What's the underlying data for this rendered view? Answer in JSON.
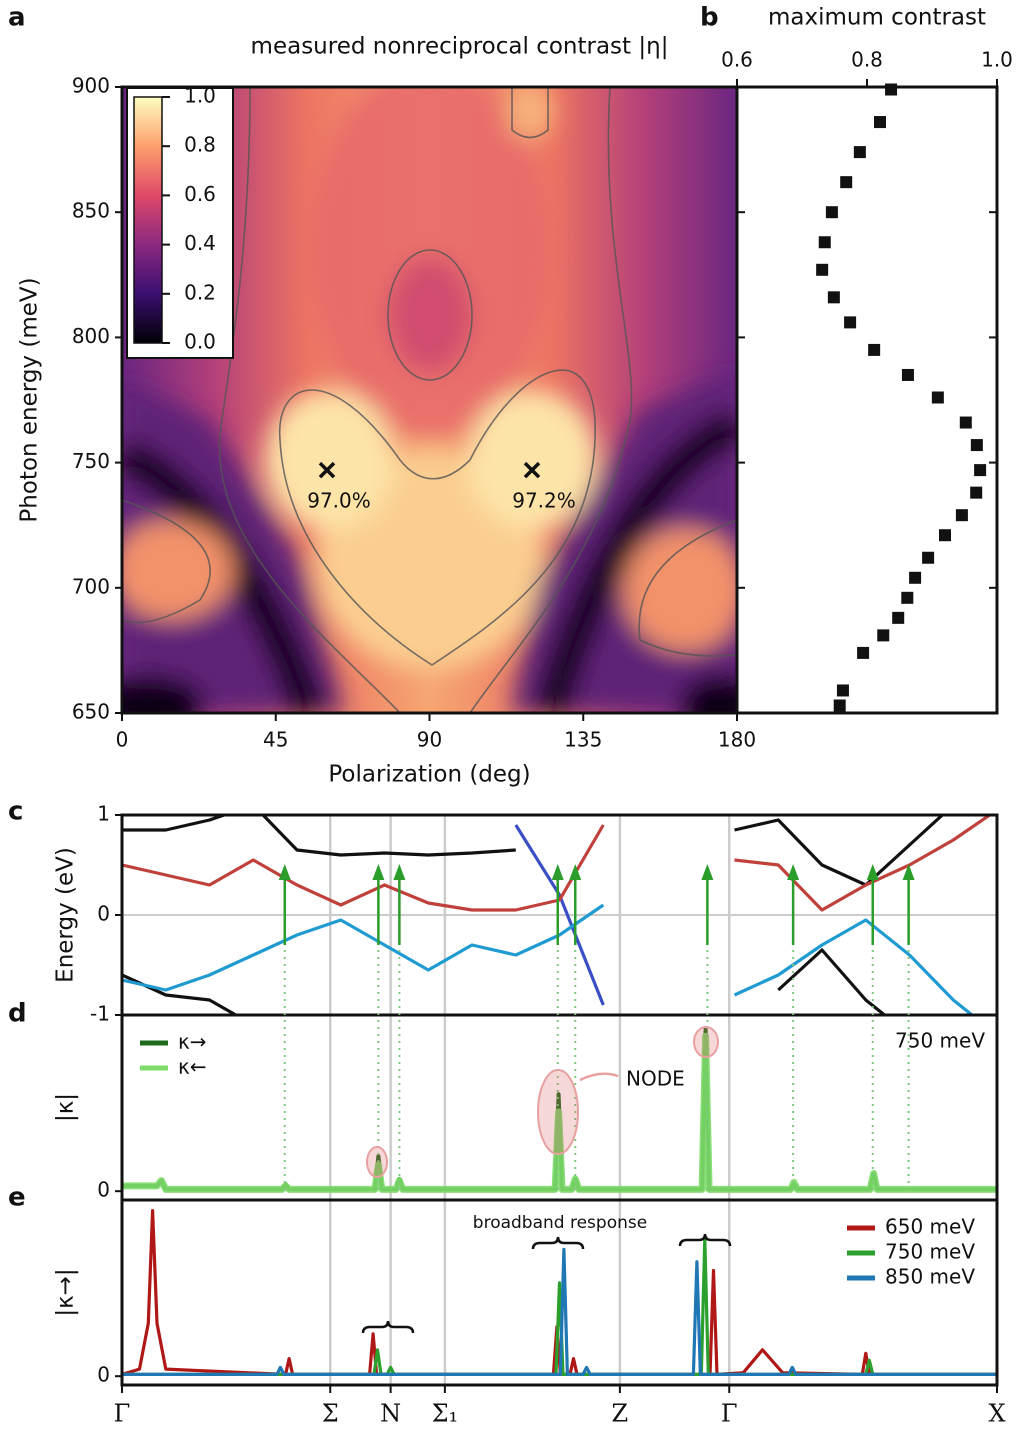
{
  "chart_data": [
    {
      "type": "heatmap",
      "panel": "a",
      "title": "measured nonreciprocal contrast |η|",
      "xlabel": "Polarization (deg)",
      "ylabel": "Photon energy (meV)",
      "xlim": [
        0,
        180
      ],
      "xticks": [
        0,
        45,
        90,
        135,
        180
      ],
      "ylim": [
        650,
        900
      ],
      "yticks": [
        650,
        700,
        750,
        800,
        850,
        900
      ],
      "colorbar": {
        "lim": [
          0,
          1
        ],
        "ticks": [
          {
            "value": 0,
            "label": "0.0"
          },
          0.2,
          0.4,
          0.6,
          0.8,
          {
            "value": 1,
            "label": "1.0"
          }
        ]
      },
      "points": {
        "x": [
          60,
          120
        ],
        "y": [
          747,
          747
        ],
        "labels": [
          "97.0%",
          "97.2%"
        ]
      }
    },
    {
      "type": "scatter",
      "panel": "b",
      "title": "maximum contrast",
      "color": "#111111",
      "xlim": [
        0.6,
        1.0
      ],
      "xticks": [
        0.6,
        0.8,
        {
          "value": 1.0,
          "label": "1.0"
        }
      ],
      "ylim": [
        650,
        900
      ],
      "yticks": [
        650,
        700,
        750,
        800,
        850,
        900
      ],
      "x": [
        0.837,
        0.82,
        0.789,
        0.768,
        0.746,
        0.735,
        0.731,
        0.749,
        0.774,
        0.811,
        0.863,
        0.909,
        0.952,
        0.969,
        0.974,
        0.968,
        0.946,
        0.92,
        0.894,
        0.874,
        0.862,
        0.848,
        0.825,
        0.794,
        0.763,
        0.758
      ],
      "y": [
        899,
        886,
        874,
        862,
        850,
        838,
        827,
        816,
        806,
        795,
        785,
        776,
        766,
        757,
        747,
        738,
        729,
        721,
        712,
        704,
        696,
        688,
        681,
        674,
        659,
        653
      ]
    },
    {
      "type": "line",
      "panel": "c",
      "ylabel": "Energy (eV)",
      "grid": "both",
      "xlim": [
        0,
        1
      ],
      "xticks": [
        0.238,
        0.307,
        0.369,
        0.569,
        0.694
      ],
      "ylim": [
        -1,
        1
      ],
      "yticks": [
        -1,
        0,
        1
      ],
      "x": [
        0,
        0.05,
        0.1,
        0.15,
        0.2,
        0.25,
        0.3,
        0.35,
        0.4,
        0.45,
        0.5,
        0.55,
        0.6,
        0.65,
        0.7,
        0.75,
        0.8,
        0.85,
        0.9,
        0.95,
        1
      ],
      "series": [
        {
          "color": "#111111",
          "values": [
            0.85,
            0.85,
            0.95,
            1.1,
            0.65,
            0.6,
            0.62,
            0.6,
            0.62,
            0.65,
            null,
            null,
            null,
            null,
            0.85,
            0.95,
            0.5,
            0.3,
            0.7,
            1.1,
            null
          ]
        },
        {
          "color": "#111111",
          "values": [
            -0.6,
            -0.8,
            -0.85,
            -1.1,
            null,
            null,
            null,
            null,
            null,
            null,
            null,
            null,
            null,
            null,
            null,
            -0.75,
            -0.35,
            -0.85,
            -1.2,
            null,
            null
          ]
        },
        {
          "color": "#3a4fc4",
          "values": [
            null,
            null,
            null,
            null,
            null,
            null,
            null,
            null,
            null,
            0.9,
            0.2,
            -0.9,
            null,
            null,
            null,
            null,
            null,
            null,
            null,
            null,
            null
          ]
        },
        {
          "color": "#c0413b",
          "values": [
            0.5,
            0.4,
            0.3,
            0.55,
            0.3,
            0.1,
            0.3,
            0.12,
            0.05,
            0.05,
            0.15,
            0.9,
            null,
            null,
            0.55,
            0.5,
            0.05,
            0.3,
            0.5,
            0.75,
            1.05
          ]
        },
        {
          "color": "#1f9bd1",
          "values": [
            -0.65,
            -0.75,
            -0.6,
            -0.4,
            -0.2,
            -0.05,
            -0.3,
            -0.55,
            -0.3,
            -0.4,
            -0.2,
            0.1,
            null,
            null,
            -0.8,
            -0.6,
            -0.3,
            -0.05,
            -0.4,
            -0.85,
            -1.2
          ]
        }
      ]
    },
    {
      "type": "line",
      "panel": "d",
      "ylabel": "|κ|",
      "grid": "x",
      "legend": "upper left",
      "annotations": [
        "750 meV",
        "NODE"
      ],
      "xlim": [
        0,
        1
      ],
      "xticks": [
        0.238,
        0.307,
        0.369,
        0.569,
        0.694
      ],
      "ylim": [
        -0.05,
        1
      ],
      "yticks": [
        0
      ],
      "x": [
        0,
        0.04,
        0.045,
        0.05,
        0.183,
        0.187,
        0.191,
        0.289,
        0.293,
        0.297,
        0.313,
        0.317,
        0.321,
        0.495,
        0.499,
        0.503,
        0.514,
        0.518,
        0.522,
        0.663,
        0.667,
        0.671,
        0.764,
        0.768,
        0.772,
        0.855,
        0.859,
        0.863,
        1
      ],
      "series": [
        {
          "name": "κ→",
          "color": "#1e6b1e",
          "values": [
            0.03,
            0.03,
            0.06,
            0.01,
            0.01,
            0.04,
            0.01,
            0.01,
            0.2,
            0.01,
            0.01,
            0.07,
            0.01,
            0.01,
            0.55,
            0.01,
            0.01,
            0.07,
            0.01,
            0.01,
            0.92,
            0.01,
            0.01,
            0.04,
            0.01,
            0.01,
            0.1,
            0.01,
            0.01
          ]
        },
        {
          "name": "κ←",
          "color": "#7ddc6a",
          "values": [
            0.03,
            0.03,
            0.06,
            0.01,
            0.01,
            0.03,
            0.01,
            0.01,
            0.15,
            0.01,
            0.01,
            0.06,
            0.01,
            0.01,
            0.45,
            0.01,
            0.01,
            0.07,
            0.01,
            0.01,
            0.88,
            0.01,
            0.01,
            0.05,
            0.01,
            0.01,
            0.1,
            0.01,
            0.01
          ]
        }
      ]
    },
    {
      "type": "line",
      "panel": "e",
      "ylabel": "|κ→|",
      "grid": "x",
      "legend": "upper right",
      "annotations": [
        "broadband response"
      ],
      "xlim": [
        0,
        1
      ],
      "xticks": [
        {
          "value": 0,
          "label": "Γ"
        },
        {
          "value": 0.238,
          "label": "Σ"
        },
        {
          "value": 0.307,
          "label": "N"
        },
        {
          "value": 0.369,
          "label": "Σ₁"
        },
        {
          "value": 0.569,
          "label": "Z"
        },
        {
          "value": 0.694,
          "label": "Γ"
        },
        {
          "value": 1,
          "label": "X"
        }
      ],
      "ylim": [
        -0.05,
        1
      ],
      "yticks": [
        0
      ],
      "series": [
        {
          "name": "650 meV",
          "color": "#b01818",
          "x": [
            0,
            0.02,
            0.03,
            0.035,
            0.04,
            0.05,
            0.187,
            0.191,
            0.195,
            0.283,
            0.287,
            0.291,
            0.493,
            0.497,
            0.501,
            0.512,
            0.516,
            0.52,
            0.672,
            0.676,
            0.68,
            0.71,
            0.732,
            0.755,
            0.846,
            0.85,
            0.854,
            1
          ],
          "values": [
            0.01,
            0.04,
            0.3,
            0.94,
            0.3,
            0.04,
            0.01,
            0.1,
            0.01,
            0.01,
            0.24,
            0.01,
            0.01,
            0.28,
            0.01,
            0.01,
            0.1,
            0.01,
            0.01,
            0.6,
            0.01,
            0.02,
            0.15,
            0.02,
            0.01,
            0.13,
            0.01,
            0.01
          ]
        },
        {
          "name": "750 meV",
          "color": "#2ca02c",
          "x": [
            0,
            0.288,
            0.292,
            0.296,
            0.303,
            0.307,
            0.311,
            0.496,
            0.5,
            0.504,
            0.662,
            0.666,
            0.67,
            0.85,
            0.854,
            0.858,
            1
          ],
          "values": [
            0.01,
            0.01,
            0.15,
            0.01,
            0.01,
            0.05,
            0.01,
            0.01,
            0.53,
            0.01,
            0.01,
            0.78,
            0.01,
            0.01,
            0.09,
            0.01,
            0.01
          ]
        },
        {
          "name": "850 meV",
          "color": "#1f77b4",
          "x": [
            0,
            0.177,
            0.181,
            0.185,
            0.501,
            0.505,
            0.509,
            0.527,
            0.531,
            0.535,
            0.653,
            0.657,
            0.661,
            0.762,
            0.766,
            0.77,
            1
          ],
          "values": [
            0.01,
            0.01,
            0.05,
            0.01,
            0.01,
            0.72,
            0.01,
            0.01,
            0.05,
            0.01,
            0.01,
            0.65,
            0.01,
            0.01,
            0.05,
            0.01,
            0.01
          ]
        }
      ]
    }
  ]
}
